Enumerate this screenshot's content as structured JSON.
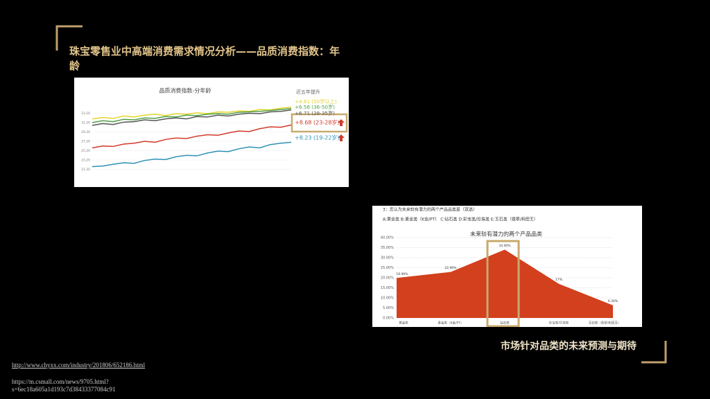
{
  "title": "珠宝零售业中高端消费需求情况分析——品质消费指数：年龄",
  "caption": "市场针对品类的未来预测与期待",
  "sources": [
    "http://www.chyxx.com/industry/201806/652186.html",
    "https://m.csmall.com/news/9705.html?",
    "s=6ec18a605a1d193c7d38433377084c91"
  ],
  "chart_data": [
    {
      "type": "line",
      "title": "品质消费指数-分年龄",
      "legend_title": "近五年提升",
      "ylim": [
        19.2,
        35.2
      ],
      "yticks": [
        {
          "value": 21.2,
          "label": "21.20"
        },
        {
          "value": 23.2,
          "label": "23.20"
        },
        {
          "value": 25.2,
          "label": "25.20"
        },
        {
          "value": 27.2,
          "label": "27.20"
        },
        {
          "value": 29.2,
          "label": "29.20"
        },
        {
          "value": 31.2,
          "label": "31.20"
        },
        {
          "value": 33.2,
          "label": "33.20"
        }
      ],
      "series": [
        {
          "name": "+4.61 (50岁以上)",
          "color": "#e3d42a",
          "values": [
            32.0,
            32.3,
            32.1,
            32.6,
            32.4,
            32.8,
            33.0,
            32.7,
            33.1,
            33.0,
            33.3,
            33.1,
            33.5,
            33.4,
            33.7,
            33.6,
            34.0,
            33.9,
            34.3,
            34.5
          ]
        },
        {
          "name": "+6.56 (36-50岁)",
          "color": "#4f9f45",
          "values": [
            31.2,
            31.6,
            31.4,
            31.9,
            31.8,
            32.2,
            32.1,
            32.5,
            32.4,
            32.8,
            32.7,
            33.0,
            33.1,
            33.0,
            33.4,
            33.5,
            33.6,
            33.8,
            34.0,
            34.2
          ]
        },
        {
          "name": "+6.71 (28-35岁)",
          "color": "#555555",
          "values": [
            30.6,
            31.0,
            30.8,
            31.3,
            31.4,
            31.8,
            31.6,
            32.0,
            32.2,
            32.0,
            32.5,
            32.4,
            32.8,
            32.6,
            33.0,
            33.2,
            33.1,
            33.5,
            33.6,
            33.9
          ]
        },
        {
          "name": "+8.68 (23-28岁)",
          "color": "#d2392a",
          "values": [
            25.8,
            26.2,
            26.1,
            26.6,
            26.8,
            27.2,
            27.0,
            27.6,
            27.9,
            27.8,
            28.3,
            28.6,
            28.5,
            29.0,
            29.4,
            29.3,
            29.9,
            30.3,
            30.2,
            30.7
          ]
        },
        {
          "name": "+8.23 (19-22岁)",
          "color": "#2d90b5",
          "values": [
            21.8,
            21.9,
            22.3,
            22.6,
            22.5,
            23.1,
            23.4,
            23.3,
            23.9,
            24.2,
            24.1,
            24.7,
            25.1,
            25.0,
            25.6,
            26.0,
            25.8,
            26.5,
            26.8,
            27.0
          ]
        }
      ]
    },
    {
      "type": "area",
      "question": "3：您认为未来较有潜力的两个产品品类是（双选）",
      "options": "A:黄金类  B:素金类（K金/PT）  C:钻石类  D:彩宝类/珍珠类  E:玉石类（翡翠/和田玉）",
      "title": "未来较有潜力的两个产品品类",
      "color": "#d2401d",
      "categories": [
        "黄金类",
        "素金类（K金/PT）",
        "钻石类",
        "彩宝类/珍珠类",
        "玉石类（翡翠/和田玉）"
      ],
      "values": [
        19.9,
        22.9,
        34,
        17,
        6.3
      ],
      "value_labels": [
        "19.90%",
        "22.90%",
        "34.00%",
        "17%",
        "6.30%"
      ],
      "ylim": [
        0,
        40
      ],
      "yticks": [
        {
          "value": 0,
          "label": "0.00%"
        },
        {
          "value": 5,
          "label": "5.00%"
        },
        {
          "value": 10,
          "label": "10.00%"
        },
        {
          "value": 15,
          "label": "15.00%"
        },
        {
          "value": 20,
          "label": "20.00%"
        },
        {
          "value": 25,
          "label": "25.00%"
        },
        {
          "value": 30,
          "label": "30.00%"
        },
        {
          "value": 35,
          "label": "35.00%"
        },
        {
          "value": 40,
          "label": "40.00%"
        }
      ],
      "grid": true
    }
  ]
}
